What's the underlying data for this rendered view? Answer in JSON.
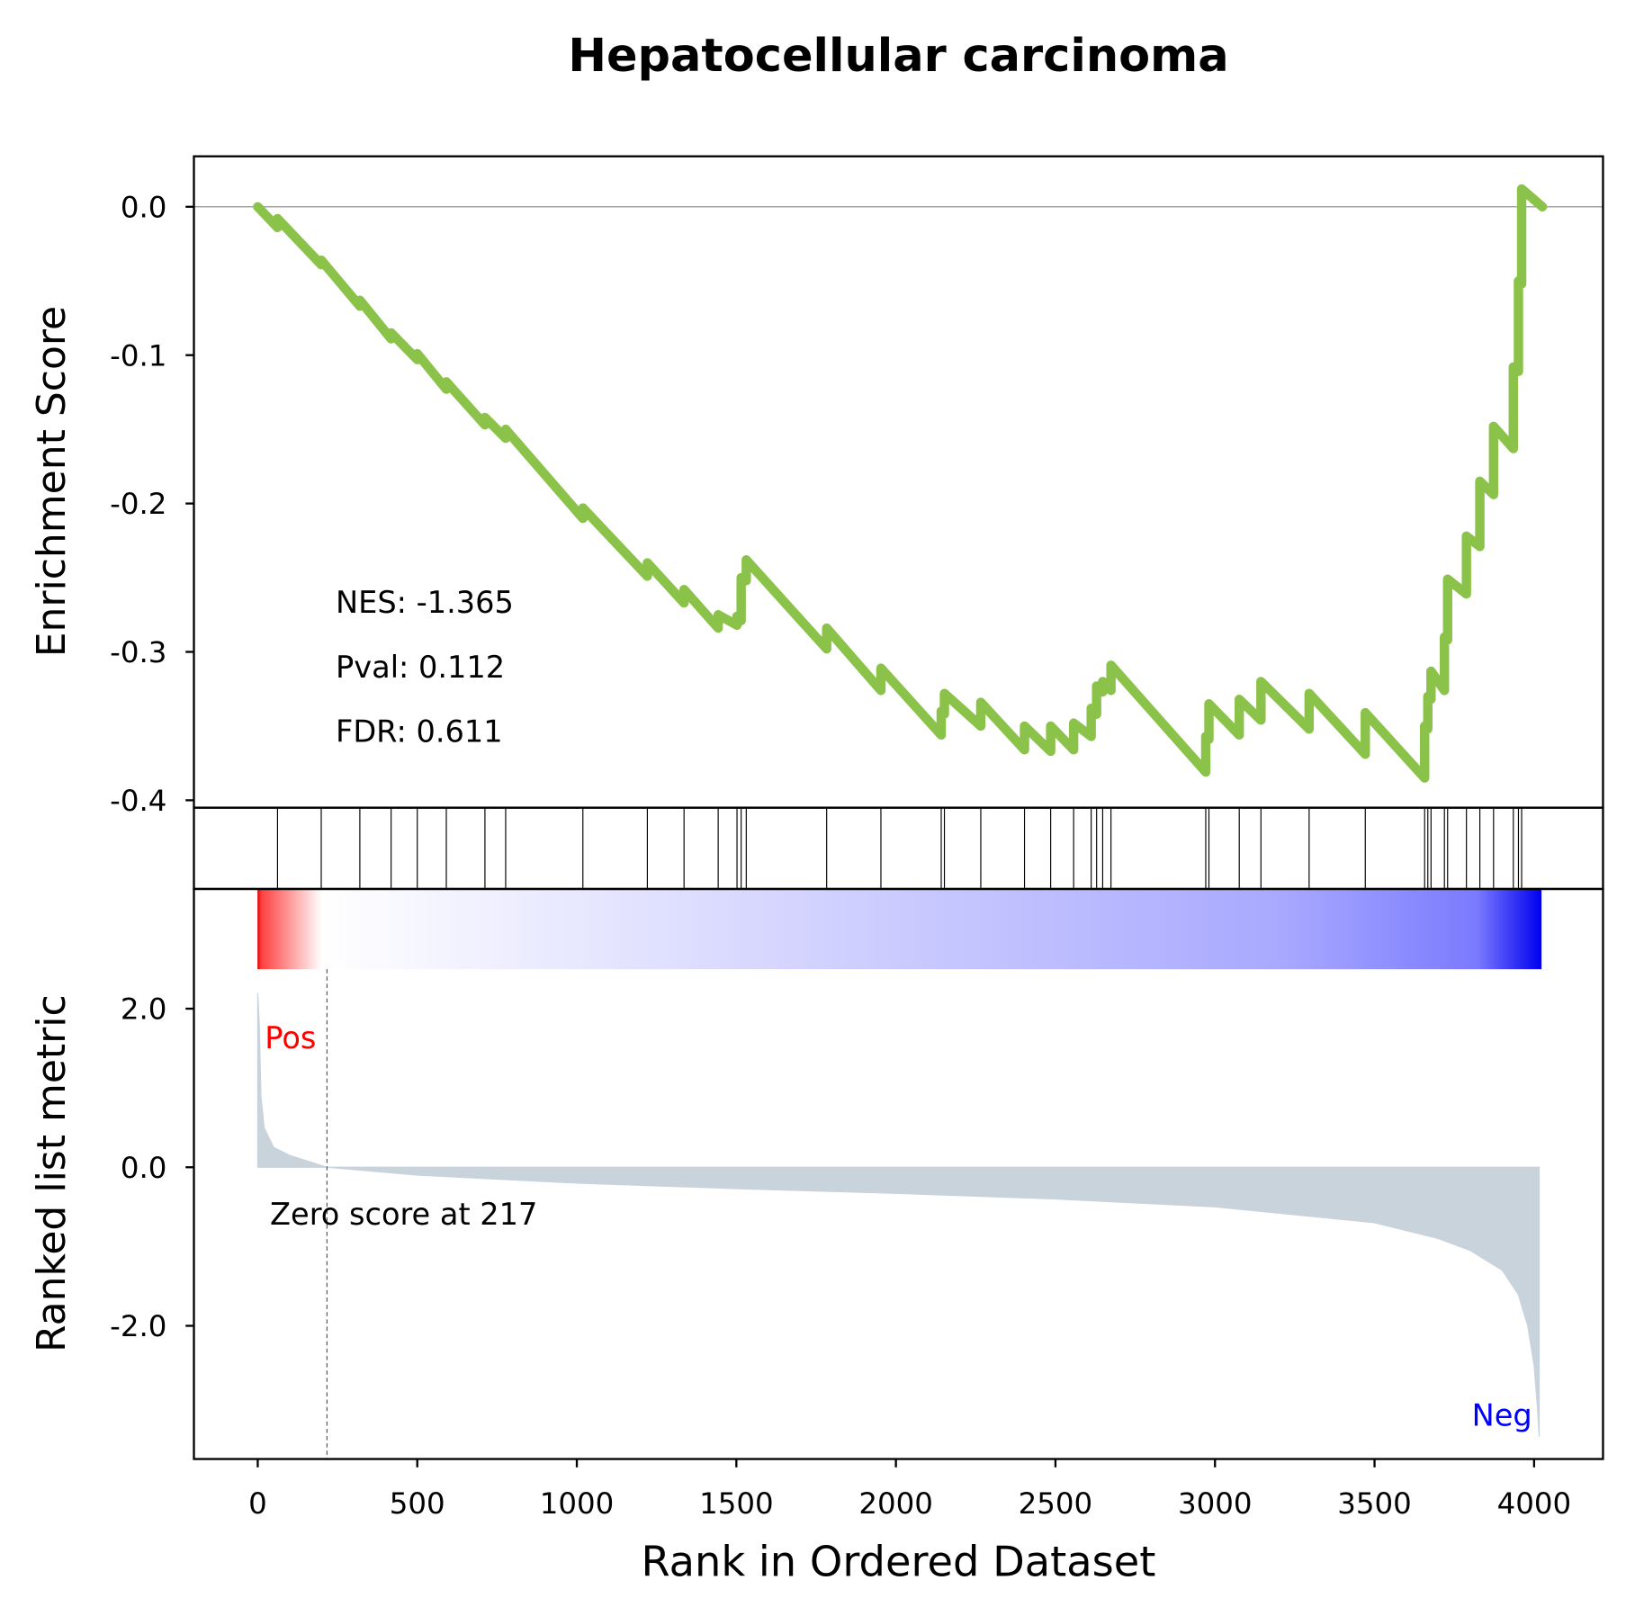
{
  "chart_data": [
    {
      "type": "line",
      "title": "Hepatocellular carcinoma",
      "ylabel": "Enrichment Score",
      "color": "#8bc34a",
      "hline": 0,
      "ylim": [
        -0.405,
        0.034
      ],
      "yticks": [
        {
          "value": 0,
          "label": "0.0"
        },
        -0.1,
        -0.2,
        -0.3,
        -0.4
      ],
      "annotations": [
        "NES: -1.365",
        "Pval: 0.112",
        "FDR: 0.611"
      ],
      "x": [
        0,
        62,
        62,
        199,
        199,
        320,
        320,
        418,
        418,
        500,
        500,
        591,
        591,
        712,
        712,
        777,
        777,
        1019,
        1019,
        1221,
        1221,
        1336,
        1336,
        1443,
        1443,
        1502,
        1502,
        1515,
        1515,
        1531,
        1531,
        1783,
        1783,
        1953,
        1953,
        2142,
        2142,
        2152,
        2152,
        2266,
        2266,
        2403,
        2403,
        2485,
        2485,
        2557,
        2557,
        2612,
        2612,
        2629,
        2629,
        2648,
        2648,
        2674,
        2674,
        2971,
        2971,
        2981,
        2981,
        3076,
        3076,
        3144,
        3144,
        3295,
        3295,
        3471,
        3471,
        3657,
        3657,
        3667,
        3667,
        3677,
        3677,
        3719,
        3719,
        3729,
        3729,
        3788,
        3788,
        3830,
        3830,
        3873,
        3873,
        3935,
        3935,
        3951,
        3951,
        3961,
        3961,
        4026
      ],
      "values": [
        0,
        -0.014,
        -0.008,
        -0.039,
        -0.036,
        -0.067,
        -0.063,
        -0.089,
        -0.085,
        -0.103,
        -0.099,
        -0.123,
        -0.118,
        -0.147,
        -0.142,
        -0.156,
        -0.15,
        -0.21,
        -0.203,
        -0.249,
        -0.24,
        -0.267,
        -0.258,
        -0.284,
        -0.275,
        -0.282,
        -0.276,
        -0.279,
        -0.25,
        -0.252,
        -0.238,
        -0.298,
        -0.284,
        -0.326,
        -0.311,
        -0.356,
        -0.34,
        -0.342,
        -0.328,
        -0.35,
        -0.334,
        -0.366,
        -0.35,
        -0.367,
        -0.35,
        -0.366,
        -0.348,
        -0.357,
        -0.338,
        -0.342,
        -0.323,
        -0.327,
        -0.32,
        -0.326,
        -0.309,
        -0.381,
        -0.357,
        -0.359,
        -0.335,
        -0.356,
        -0.332,
        -0.346,
        -0.32,
        -0.352,
        -0.328,
        -0.369,
        -0.341,
        -0.385,
        -0.35,
        -0.352,
        -0.33,
        -0.332,
        -0.313,
        -0.326,
        -0.29,
        -0.292,
        -0.251,
        -0.261,
        -0.222,
        -0.229,
        -0.185,
        -0.194,
        -0.148,
        -0.163,
        -0.108,
        -0.111,
        -0.05,
        -0.052,
        0.012,
        0
      ]
    },
    {
      "type": "rug",
      "color": "#000000",
      "x": [
        62,
        199,
        320,
        418,
        500,
        591,
        712,
        777,
        1019,
        1221,
        1336,
        1443,
        1502,
        1515,
        1531,
        1783,
        1953,
        2142,
        2152,
        2266,
        2403,
        2485,
        2557,
        2612,
        2629,
        2648,
        2674,
        2971,
        2981,
        3076,
        3144,
        3295,
        3471,
        3657,
        3667,
        3677,
        3719,
        3729,
        3788,
        3830,
        3873,
        3935,
        3951,
        3961
      ]
    },
    {
      "type": "area",
      "ylabel": "Ranked list metric",
      "xlabel": "Rank in Ordered Dataset",
      "color": "#c8d3dc",
      "xlim": [
        -200,
        4216
      ],
      "xticks": [
        0,
        500,
        1000,
        1500,
        2000,
        2500,
        3000,
        3500,
        4000
      ],
      "ylim": [
        -3.68,
        3.51
      ],
      "yticks": [
        {
          "value": 2,
          "label": "2.0"
        },
        {
          "value": 0,
          "label": "0.0"
        },
        {
          "value": -2,
          "label": "-2.0"
        }
      ],
      "vline": 217,
      "annotations": [
        "Pos",
        "Neg",
        "Zero score at 217"
      ],
      "x": [
        0,
        5,
        10,
        20,
        50,
        100,
        217,
        500,
        1000,
        1500,
        2000,
        2500,
        3000,
        3500,
        3700,
        3800,
        3900,
        3950,
        3980,
        4000,
        4010,
        4016
      ],
      "values": [
        2.2,
        1.8,
        0.9,
        0.5,
        0.25,
        0.15,
        0,
        -0.1,
        -0.2,
        -0.27,
        -0.33,
        -0.4,
        -0.5,
        -0.7,
        -0.9,
        -1.05,
        -1.3,
        -1.6,
        -2.0,
        -2.5,
        -3.0,
        -3.4
      ]
    }
  ]
}
